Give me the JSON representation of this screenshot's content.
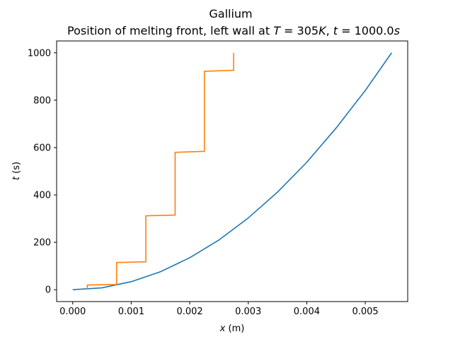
{
  "chart_data": {
    "type": "line",
    "title": "Gallium",
    "subtitle_prefix": "Position of melting front, left wall at ",
    "subtitle_T_sym": "T",
    "subtitle_T_val": " = 305",
    "subtitle_T_unit": "K",
    "subtitle_sep": ", ",
    "subtitle_t_sym": "t",
    "subtitle_t_val": " = 1000.0",
    "subtitle_t_unit": "s",
    "xlabel_sym": "x",
    "xlabel_unit": " (m)",
    "ylabel_sym": "t",
    "ylabel_unit": " (s)",
    "xlim": [
      -0.000275,
      0.005725
    ],
    "ylim": [
      -50,
      1050
    ],
    "xticks": [
      0.0,
      0.001,
      0.002,
      0.003,
      0.004,
      0.005
    ],
    "xtick_labels": [
      "0.000",
      "0.001",
      "0.002",
      "0.003",
      "0.004",
      "0.005"
    ],
    "yticks": [
      0,
      200,
      400,
      600,
      800,
      1000
    ],
    "ytick_labels": [
      "0",
      "200",
      "400",
      "600",
      "800",
      "1000"
    ],
    "grid": false,
    "series": [
      {
        "color": "#1f77b4",
        "x": [
          0.0,
          0.0005,
          0.001,
          0.0015,
          0.002,
          0.0025,
          0.003,
          0.0035,
          0.004,
          0.0045,
          0.005,
          0.00545
        ],
        "y": [
          0,
          8,
          34,
          76,
          135,
          210,
          303,
          412,
          538,
          682,
          841,
          1000
        ]
      },
      {
        "color": "#ff7f0e",
        "x": [
          0.00025,
          0.00025,
          0.00075,
          0.00075,
          0.00125,
          0.00125,
          0.00175,
          0.00175,
          0.00225,
          0.00225,
          0.00275,
          0.00275
        ],
        "y": [
          0,
          20,
          22,
          115,
          118,
          312,
          315,
          580,
          584,
          922,
          926,
          1000
        ]
      }
    ]
  }
}
